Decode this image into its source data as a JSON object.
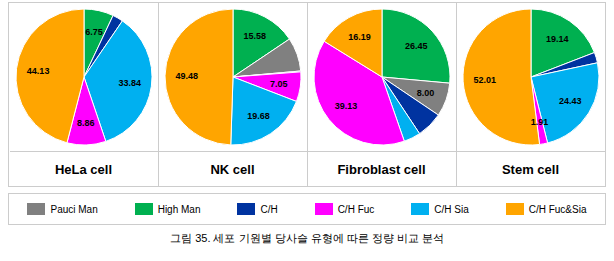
{
  "chart_data": [
    {
      "type": "pie",
      "title": "HeLa cell",
      "categories": [
        "High Man",
        "C/H",
        "C/H Sia",
        "C/H Fuc",
        "C/H Fuc&Sia"
      ],
      "values": [
        6.75,
        2.42,
        33.84,
        8.86,
        44.13
      ],
      "value_labels": [
        "6.75",
        null,
        "33.84",
        "8.86",
        "44.13"
      ],
      "colors": [
        "#00b050",
        "#0033a0",
        "#00b0f0",
        "#ff00ff",
        "#ffa500"
      ],
      "data_labels": true
    },
    {
      "type": "pie",
      "title": "NK cell",
      "categories": [
        "High Man",
        "Pauci Man",
        "C/H",
        "C/H Fuc",
        "C/H Sia",
        "C/H Fuc&Sia"
      ],
      "values": [
        15.58,
        8.01,
        0.21,
        7.05,
        19.68,
        49.48
      ],
      "value_labels": [
        "15.58",
        null,
        null,
        "7.05",
        "19.68",
        "49.48"
      ],
      "colors": [
        "#00b050",
        "#808080",
        "#0033a0",
        "#ff00ff",
        "#00b0f0",
        "#ffa500"
      ],
      "data_labels": true
    },
    {
      "type": "pie",
      "title": "Fibroblast cell",
      "categories": [
        "High Man",
        "Pauci Man",
        "C/H",
        "C/H Sia",
        "C/H Fuc",
        "C/H Fuc&Sia"
      ],
      "values": [
        26.45,
        8.0,
        6.23,
        4.0,
        39.13,
        16.19
      ],
      "value_labels": [
        "26.45",
        "8.00",
        null,
        null,
        "39.13",
        "16.19"
      ],
      "colors": [
        "#00b050",
        "#808080",
        "#0033a0",
        "#00b0f0",
        "#ff00ff",
        "#ffa500"
      ],
      "data_labels": true
    },
    {
      "type": "pie",
      "title": "Stem cell",
      "categories": [
        "High Man",
        "C/H",
        "C/H Sia",
        "C/H Fuc",
        "C/H Fuc&Sia"
      ],
      "values": [
        19.14,
        2.51,
        24.43,
        1.91,
        52.01
      ],
      "value_labels": [
        "19.14",
        null,
        "24.43",
        "1.91",
        "52.01"
      ],
      "colors": [
        "#00b050",
        "#0033a0",
        "#00b0f0",
        "#ff00ff",
        "#ffa500"
      ],
      "data_labels": true
    }
  ],
  "legend_items": [
    {
      "name": "Pauci Man",
      "color": "#808080"
    },
    {
      "name": "High Man",
      "color": "#00b050"
    },
    {
      "name": "C/H",
      "color": "#0033a0"
    },
    {
      "name": "C/H Fuc",
      "color": "#ff00ff"
    },
    {
      "name": "C/H Sia",
      "color": "#00b0f0"
    },
    {
      "name": "C/H Fuc&Sia",
      "color": "#ffa500"
    }
  ],
  "caption": "그림 35. 세포 기원별 당사슬 유형에 따른 정량 비교 분석"
}
